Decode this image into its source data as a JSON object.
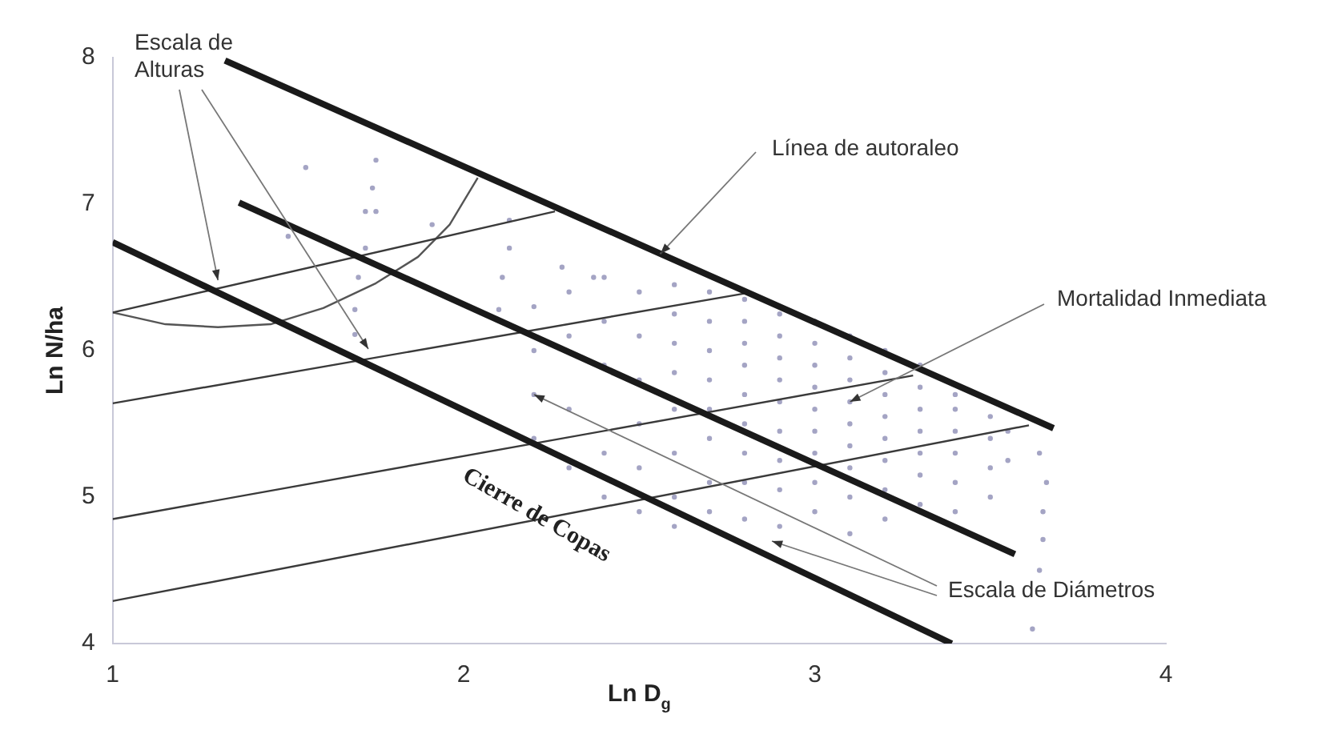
{
  "chart_data": {
    "type": "scatter",
    "xlabel": "Ln D$_{g}$",
    "ylabel": "Ln N/ha",
    "xlim": [
      1,
      4
    ],
    "ylim": [
      4,
      8
    ],
    "xticks": [
      1,
      2,
      3,
      4
    ],
    "yticks": [
      4,
      5,
      6,
      7,
      8
    ],
    "grid": false,
    "legend": false,
    "series": [
      {
        "color": "#a4a4c4",
        "x": [
          1.55,
          1.75,
          1.74,
          1.72,
          1.75,
          1.72,
          1.7,
          1.69,
          1.69,
          1.5,
          1.91,
          2.13,
          2.13,
          2.11,
          2.1,
          2.28,
          2.37,
          2.2,
          2.2,
          2.2,
          2.2,
          2.3,
          2.3,
          2.3,
          2.3,
          2.4,
          2.4,
          2.4,
          2.4,
          2.4,
          2.5,
          2.5,
          2.5,
          2.5,
          2.5,
          2.5,
          2.6,
          2.6,
          2.6,
          2.6,
          2.6,
          2.6,
          2.6,
          2.6,
          2.7,
          2.7,
          2.7,
          2.7,
          2.7,
          2.7,
          2.7,
          2.7,
          2.8,
          2.8,
          2.8,
          2.8,
          2.8,
          2.8,
          2.8,
          2.8,
          2.8,
          2.9,
          2.9,
          2.9,
          2.9,
          2.9,
          2.9,
          2.9,
          2.9,
          2.9,
          3.0,
          3.0,
          3.0,
          3.0,
          3.0,
          3.0,
          3.0,
          3.0,
          3.0,
          3.1,
          3.1,
          3.1,
          3.1,
          3.1,
          3.1,
          3.1,
          3.1,
          3.1,
          3.2,
          3.2,
          3.2,
          3.2,
          3.2,
          3.2,
          3.2,
          3.2,
          3.3,
          3.3,
          3.3,
          3.3,
          3.3,
          3.3,
          3.3,
          3.4,
          3.4,
          3.4,
          3.4,
          3.4,
          3.4,
          3.5,
          3.5,
          3.5,
          3.5,
          3.55,
          3.55,
          3.64,
          3.66,
          3.65,
          3.65,
          3.64,
          3.62
        ],
        "values": [
          7.25,
          7.3,
          7.11,
          6.95,
          6.95,
          6.7,
          6.5,
          6.28,
          6.11,
          6.78,
          6.86,
          6.89,
          6.7,
          6.5,
          6.28,
          6.57,
          6.5,
          6.3,
          6.0,
          5.7,
          5.4,
          6.4,
          6.1,
          5.6,
          5.2,
          6.5,
          6.2,
          5.9,
          5.3,
          5.0,
          6.4,
          6.1,
          5.8,
          5.5,
          5.2,
          4.9,
          6.45,
          6.25,
          6.05,
          5.85,
          5.6,
          5.3,
          5.0,
          4.8,
          6.4,
          6.2,
          6.0,
          5.8,
          5.6,
          5.4,
          5.1,
          4.9,
          6.35,
          6.2,
          6.05,
          5.9,
          5.7,
          5.5,
          5.3,
          5.1,
          4.85,
          6.25,
          6.1,
          5.95,
          5.8,
          5.65,
          5.45,
          5.25,
          5.05,
          4.8,
          6.2,
          6.05,
          5.9,
          5.75,
          5.6,
          5.45,
          5.3,
          5.1,
          4.9,
          6.1,
          5.95,
          5.8,
          5.65,
          5.5,
          5.35,
          5.2,
          5.0,
          4.75,
          6.0,
          5.85,
          5.7,
          5.55,
          5.4,
          5.25,
          5.05,
          4.85,
          5.9,
          5.75,
          5.6,
          5.45,
          5.3,
          5.15,
          4.95,
          5.7,
          5.6,
          5.45,
          5.3,
          5.1,
          4.9,
          5.55,
          5.4,
          5.2,
          5.0,
          5.45,
          5.25,
          5.3,
          5.1,
          4.9,
          4.71,
          4.5,
          4.1
        ]
      },
      {
        "type": "line",
        "color": "#1a1a1a",
        "x": [
          1.32,
          3.68
        ],
        "values": [
          7.98,
          5.47
        ]
      },
      {
        "type": "line",
        "color": "#1a1a1a",
        "x": [
          1.36,
          3.57
        ],
        "values": [
          7.01,
          4.61
        ]
      },
      {
        "type": "line",
        "color": "#1a1a1a",
        "x": [
          1.0,
          3.39
        ],
        "values": [
          6.74,
          4.0
        ]
      },
      {
        "type": "line",
        "color": "#3a3a3a",
        "x": [
          1.0,
          2.26
        ],
        "values": [
          6.26,
          6.95
        ]
      },
      {
        "type": "line",
        "color": "#3a3a3a",
        "x": [
          1.0,
          2.8
        ],
        "values": [
          5.64,
          6.39
        ]
      },
      {
        "type": "line",
        "color": "#3a3a3a",
        "x": [
          1.0,
          3.28
        ],
        "values": [
          4.85,
          5.83
        ]
      },
      {
        "type": "line",
        "color": "#3a3a3a",
        "x": [
          1.0,
          3.61
        ],
        "values": [
          4.29,
          5.49
        ]
      },
      {
        "type": "line",
        "color": "#555555",
        "x": [
          1.0,
          1.15,
          1.3,
          1.45,
          1.6,
          1.75,
          1.87,
          1.96,
          2.04
        ],
        "values": [
          6.26,
          6.18,
          6.16,
          6.18,
          6.29,
          6.46,
          6.64,
          6.86,
          7.18
        ]
      }
    ],
    "annotations": [
      {
        "text": "Escala de Alturas",
        "x": 1.3,
        "y": 6.48
      },
      {
        "text": "Línea de autoraleo",
        "x": 2.56,
        "y": 6.66
      },
      {
        "text": "Mortalidad Inmediata",
        "x": 3.1,
        "y": 5.65
      },
      {
        "text": "Escala de Diámetros",
        "x": 2.2,
        "y": 5.7
      },
      "Cierre de Copas"
    ]
  }
}
